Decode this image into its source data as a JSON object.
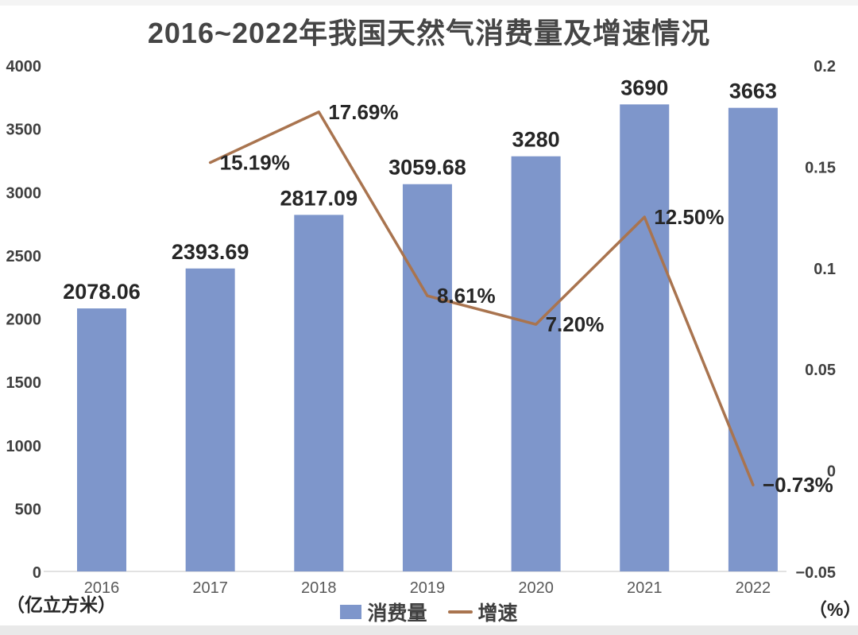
{
  "title": "2016~2022年我国天然气消费量及增速情况",
  "left_axis_unit": "（亿立方米）",
  "right_axis_unit": "（%）",
  "legend": {
    "bars": "消费量",
    "line": "增速"
  },
  "colors": {
    "bar": "#7E96CB",
    "line": "#A9744F",
    "title_text": "#454545",
    "axis_tick_text": "#404040",
    "year_text": "#595959",
    "data_label_text": "#262626",
    "axis_line": "#D9D9D9"
  },
  "chart_data": {
    "type": "bar+line combo, dual axis",
    "categories": [
      "2016",
      "2017",
      "2018",
      "2019",
      "2020",
      "2021",
      "2022"
    ],
    "series": [
      {
        "name": "消费量",
        "type": "bar",
        "axis": "left",
        "values": [
          2078.06,
          2393.69,
          2817.09,
          3059.68,
          3280,
          3690,
          3663
        ],
        "labels": [
          "2078.06",
          "2393.69",
          "2817.09",
          "3059.68",
          "3280",
          "3690",
          "3663"
        ]
      },
      {
        "name": "增速",
        "type": "line",
        "axis": "right",
        "values": [
          null,
          0.1519,
          0.1769,
          0.0861,
          0.072,
          0.125,
          -0.0073
        ],
        "labels": [
          null,
          "15.19%",
          "17.69%",
          "8.61%",
          "7.20%",
          "12.50%",
          "−0.73%"
        ]
      }
    ],
    "left_axis": {
      "min": 0,
      "max": 4000,
      "step": 500,
      "ticks": [
        "0",
        "500",
        "1000",
        "1500",
        "2000",
        "2500",
        "3000",
        "3500",
        "4000"
      ]
    },
    "right_axis": {
      "min": -0.05,
      "max": 0.2,
      "step": 0.05,
      "ticks": [
        "−0.05",
        "0",
        "0.05",
        "0.1",
        "0.15",
        "0.2"
      ]
    },
    "gridlines": false,
    "legend_position": "bottom-center"
  }
}
